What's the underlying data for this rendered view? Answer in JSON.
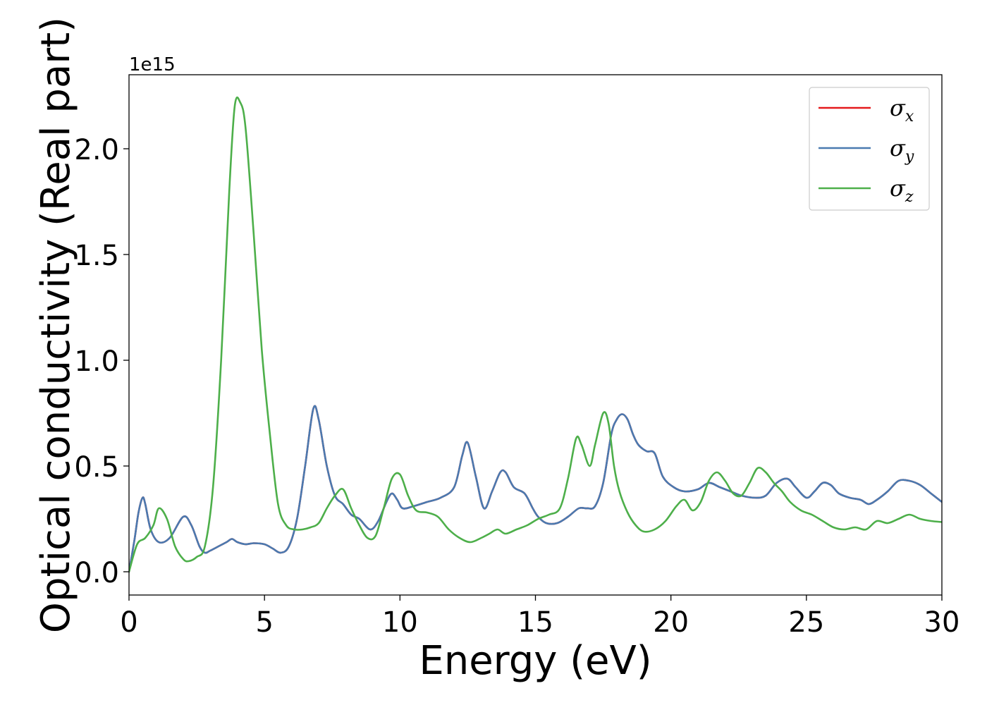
{
  "chart_data": {
    "type": "line",
    "xlabel": "Energy (eV)",
    "ylabel": "Optical conductivity (Real part)",
    "y_offset_text": "1e15",
    "xlim": [
      0,
      30
    ],
    "ylim": [
      -0.11,
      2.35
    ],
    "x_ticks": [
      0,
      5,
      10,
      15,
      20,
      25,
      30
    ],
    "y_ticks": [
      0.0,
      0.5,
      1.0,
      1.5,
      2.0
    ],
    "x_tick_labels": [
      "0",
      "5",
      "10",
      "15",
      "20",
      "25",
      "30"
    ],
    "y_tick_labels": [
      "0.0",
      "0.5",
      "1.0",
      "1.5",
      "2.0"
    ],
    "grid": false,
    "legend_position": "top-right",
    "legend": [
      {
        "symbol": "σ",
        "sub": "x",
        "color": "#e41a1c"
      },
      {
        "symbol": "σ",
        "sub": "y",
        "color": "#4a7ab0"
      },
      {
        "symbol": "σ",
        "sub": "z",
        "color": "#4daf4a"
      }
    ],
    "series": [
      {
        "name": "σx",
        "color": "#e41a1c",
        "x": [
          0,
          0.2,
          0.35,
          0.5,
          0.6,
          0.8,
          1.1,
          1.5,
          2.0,
          2.3,
          2.6,
          2.8,
          3.0,
          3.3,
          3.6,
          3.8,
          4.0,
          4.3,
          4.6,
          5.0,
          5.3,
          5.6,
          5.9,
          6.2,
          6.5,
          6.8,
          7.0,
          7.3,
          7.6,
          7.9,
          8.2,
          8.5,
          8.9,
          9.2,
          9.5,
          9.7,
          9.9,
          10.1,
          10.5,
          11.0,
          11.5,
          12.0,
          12.3,
          12.5,
          12.8,
          13.1,
          13.4,
          13.7,
          13.9,
          14.2,
          14.6,
          14.9,
          15.1,
          15.4,
          15.8,
          16.2,
          16.6,
          16.9,
          17.2,
          17.5,
          17.8,
          18.0,
          18.2,
          18.4,
          18.6,
          18.8,
          19.1,
          19.4,
          19.7,
          20.1,
          20.5,
          21.0,
          21.4,
          21.8,
          22.2,
          22.6,
          23.1,
          23.5,
          23.9,
          24.3,
          24.6,
          25.0,
          25.3,
          25.6,
          25.9,
          26.2,
          26.6,
          27.0,
          27.3,
          27.6,
          28.0,
          28.4,
          28.8,
          29.2,
          29.6,
          30.0
        ],
        "values": [
          0.0,
          0.15,
          0.28,
          0.35,
          0.32,
          0.2,
          0.14,
          0.16,
          0.26,
          0.22,
          0.12,
          0.09,
          0.1,
          0.12,
          0.14,
          0.155,
          0.14,
          0.13,
          0.135,
          0.13,
          0.11,
          0.09,
          0.12,
          0.25,
          0.5,
          0.77,
          0.72,
          0.5,
          0.36,
          0.32,
          0.27,
          0.25,
          0.2,
          0.24,
          0.33,
          0.37,
          0.34,
          0.3,
          0.31,
          0.33,
          0.35,
          0.4,
          0.55,
          0.61,
          0.45,
          0.3,
          0.38,
          0.47,
          0.47,
          0.4,
          0.37,
          0.3,
          0.26,
          0.23,
          0.23,
          0.26,
          0.3,
          0.3,
          0.31,
          0.42,
          0.65,
          0.72,
          0.745,
          0.72,
          0.65,
          0.6,
          0.57,
          0.56,
          0.45,
          0.4,
          0.38,
          0.39,
          0.42,
          0.4,
          0.38,
          0.36,
          0.35,
          0.36,
          0.42,
          0.44,
          0.4,
          0.35,
          0.38,
          0.42,
          0.41,
          0.37,
          0.35,
          0.34,
          0.32,
          0.34,
          0.38,
          0.43,
          0.43,
          0.41,
          0.37,
          0.33
        ]
      },
      {
        "name": "σy",
        "color": "#4a7ab0",
        "x": [
          0,
          0.2,
          0.35,
          0.5,
          0.6,
          0.8,
          1.1,
          1.5,
          2.0,
          2.3,
          2.6,
          2.8,
          3.0,
          3.3,
          3.6,
          3.8,
          4.0,
          4.3,
          4.6,
          5.0,
          5.3,
          5.6,
          5.9,
          6.2,
          6.5,
          6.8,
          7.0,
          7.3,
          7.6,
          7.9,
          8.2,
          8.5,
          8.9,
          9.2,
          9.5,
          9.7,
          9.9,
          10.1,
          10.5,
          11.0,
          11.5,
          12.0,
          12.3,
          12.5,
          12.8,
          13.1,
          13.4,
          13.7,
          13.9,
          14.2,
          14.6,
          14.9,
          15.1,
          15.4,
          15.8,
          16.2,
          16.6,
          16.9,
          17.2,
          17.5,
          17.8,
          18.0,
          18.2,
          18.4,
          18.6,
          18.8,
          19.1,
          19.4,
          19.7,
          20.1,
          20.5,
          21.0,
          21.4,
          21.8,
          22.2,
          22.6,
          23.1,
          23.5,
          23.9,
          24.3,
          24.6,
          25.0,
          25.3,
          25.6,
          25.9,
          26.2,
          26.6,
          27.0,
          27.3,
          27.6,
          28.0,
          28.4,
          28.8,
          29.2,
          29.6,
          30.0
        ],
        "values": [
          0.0,
          0.15,
          0.28,
          0.35,
          0.32,
          0.2,
          0.14,
          0.16,
          0.26,
          0.22,
          0.12,
          0.09,
          0.1,
          0.12,
          0.14,
          0.155,
          0.14,
          0.13,
          0.135,
          0.13,
          0.11,
          0.09,
          0.12,
          0.25,
          0.5,
          0.77,
          0.72,
          0.5,
          0.36,
          0.32,
          0.27,
          0.25,
          0.2,
          0.24,
          0.33,
          0.37,
          0.34,
          0.3,
          0.31,
          0.33,
          0.35,
          0.4,
          0.55,
          0.61,
          0.45,
          0.3,
          0.38,
          0.47,
          0.47,
          0.4,
          0.37,
          0.3,
          0.26,
          0.23,
          0.23,
          0.26,
          0.3,
          0.3,
          0.31,
          0.42,
          0.65,
          0.72,
          0.745,
          0.72,
          0.65,
          0.6,
          0.57,
          0.56,
          0.45,
          0.4,
          0.38,
          0.39,
          0.42,
          0.4,
          0.38,
          0.36,
          0.35,
          0.36,
          0.42,
          0.44,
          0.4,
          0.35,
          0.38,
          0.42,
          0.41,
          0.37,
          0.35,
          0.34,
          0.32,
          0.34,
          0.38,
          0.43,
          0.43,
          0.41,
          0.37,
          0.33
        ]
      },
      {
        "name": "σz",
        "color": "#4daf4a",
        "x": [
          0,
          0.3,
          0.6,
          0.9,
          1.1,
          1.4,
          1.7,
          2.0,
          2.2,
          2.5,
          2.8,
          3.1,
          3.4,
          3.7,
          3.9,
          4.1,
          4.3,
          4.6,
          4.9,
          5.2,
          5.5,
          5.8,
          6.1,
          6.4,
          6.7,
          7.0,
          7.3,
          7.6,
          7.9,
          8.2,
          8.5,
          8.8,
          9.1,
          9.4,
          9.7,
          10.0,
          10.3,
          10.6,
          11.0,
          11.4,
          11.8,
          12.2,
          12.6,
          13.0,
          13.3,
          13.6,
          13.9,
          14.3,
          14.7,
          15.1,
          15.5,
          15.9,
          16.2,
          16.5,
          16.7,
          17.0,
          17.2,
          17.5,
          17.7,
          17.9,
          18.1,
          18.4,
          18.7,
          19.0,
          19.4,
          19.8,
          20.2,
          20.5,
          20.8,
          21.1,
          21.4,
          21.7,
          22.0,
          22.3,
          22.6,
          22.9,
          23.2,
          23.5,
          23.8,
          24.1,
          24.4,
          24.8,
          25.2,
          25.6,
          26.0,
          26.4,
          26.8,
          27.2,
          27.6,
          28.0,
          28.4,
          28.8,
          29.2,
          29.6,
          30.0
        ],
        "values": [
          0.0,
          0.13,
          0.16,
          0.22,
          0.3,
          0.25,
          0.12,
          0.06,
          0.05,
          0.07,
          0.12,
          0.4,
          1.0,
          1.8,
          2.2,
          2.22,
          2.1,
          1.6,
          1.05,
          0.65,
          0.32,
          0.22,
          0.2,
          0.2,
          0.21,
          0.23,
          0.3,
          0.36,
          0.39,
          0.3,
          0.22,
          0.16,
          0.17,
          0.3,
          0.44,
          0.46,
          0.36,
          0.29,
          0.28,
          0.26,
          0.2,
          0.16,
          0.14,
          0.16,
          0.18,
          0.2,
          0.18,
          0.2,
          0.22,
          0.25,
          0.27,
          0.3,
          0.44,
          0.63,
          0.6,
          0.5,
          0.6,
          0.75,
          0.7,
          0.5,
          0.38,
          0.28,
          0.22,
          0.19,
          0.2,
          0.24,
          0.31,
          0.34,
          0.29,
          0.33,
          0.43,
          0.47,
          0.43,
          0.37,
          0.36,
          0.42,
          0.49,
          0.47,
          0.42,
          0.38,
          0.33,
          0.29,
          0.27,
          0.24,
          0.21,
          0.2,
          0.21,
          0.2,
          0.24,
          0.23,
          0.25,
          0.27,
          0.25,
          0.24,
          0.235
        ]
      }
    ]
  }
}
